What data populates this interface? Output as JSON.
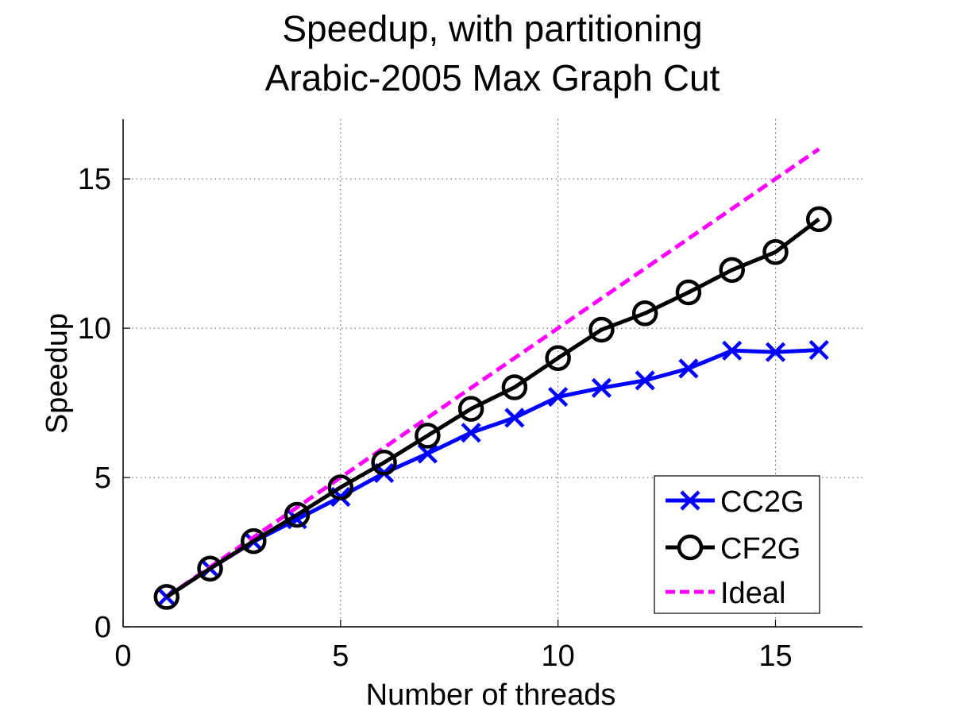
{
  "chart_data": {
    "type": "line",
    "title_lines": [
      "Speedup, with partitioning",
      "Arabic-2005 Max Graph Cut"
    ],
    "xlabel": "Number of threads",
    "ylabel": "Speedup",
    "xlim": [
      0,
      17
    ],
    "ylim": [
      0,
      17
    ],
    "xticks": [
      0,
      5,
      10,
      15
    ],
    "yticks": [
      0,
      5,
      10,
      15
    ],
    "xtick_labels": [
      "0",
      "5",
      "10",
      "15"
    ],
    "ytick_labels": [
      "0",
      "5",
      "10",
      "15"
    ],
    "grid": true,
    "legend_position": "bottom-right",
    "series": [
      {
        "name": "CC2G",
        "color": "#0000ff",
        "marker": "x",
        "line_style": "solid",
        "x": [
          1,
          2,
          3,
          4,
          5,
          6,
          7,
          8,
          9,
          10,
          11,
          12,
          13,
          14,
          15,
          16
        ],
        "y": [
          1.0,
          1.95,
          2.85,
          3.6,
          4.35,
          5.15,
          5.8,
          6.5,
          7.0,
          7.7,
          8.0,
          8.25,
          8.65,
          9.25,
          9.2,
          9.27
        ]
      },
      {
        "name": "CF2G",
        "color": "#000000",
        "marker": "o",
        "line_style": "solid",
        "x": [
          1,
          2,
          3,
          4,
          5,
          6,
          7,
          8,
          9,
          10,
          11,
          12,
          13,
          14,
          15,
          16
        ],
        "y": [
          1.0,
          1.95,
          2.87,
          3.75,
          4.67,
          5.5,
          6.4,
          7.3,
          8.02,
          9.0,
          9.95,
          10.5,
          11.2,
          11.95,
          12.55,
          13.65
        ]
      },
      {
        "name": "Ideal",
        "color": "#ff00ff",
        "marker": "none",
        "line_style": "dashed",
        "x": [
          1,
          16
        ],
        "y": [
          1,
          16
        ]
      }
    ]
  }
}
